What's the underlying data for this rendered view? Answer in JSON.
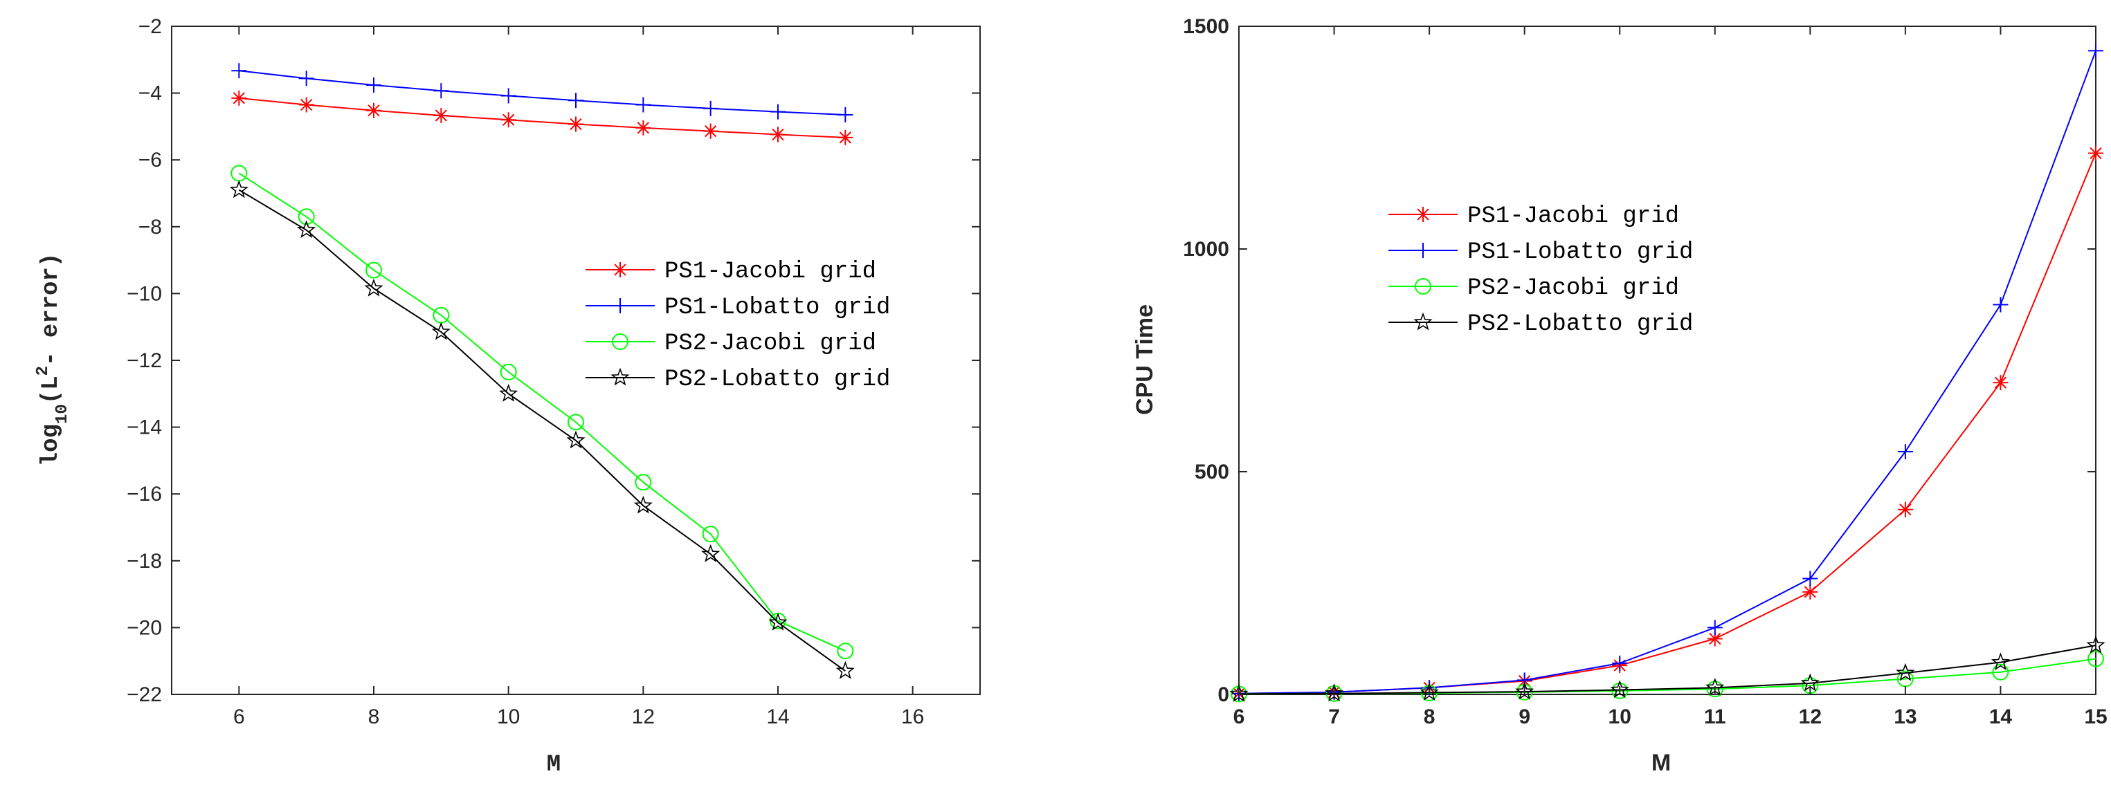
{
  "colors": {
    "ps1_jacobi": "#ff0000",
    "ps1_lobatto": "#0000ff",
    "ps2_jacobi": "#00ff00",
    "ps2_lobatto": "#000000"
  },
  "chart_data": [
    {
      "type": "line",
      "title": "",
      "xlabel": "M",
      "ylabel_prefix": "log",
      "ylabel_sub": "10",
      "ylabel_mid": "(L",
      "ylabel_sup": "2",
      "ylabel_suffix": "- error)",
      "xlim": [
        5,
        17
      ],
      "ylim": [
        -22,
        -2
      ],
      "xticks": [
        6,
        8,
        10,
        12,
        14,
        16
      ],
      "yticks": [
        -22,
        -20,
        -18,
        -16,
        -14,
        -12,
        -10,
        -8,
        -6,
        -4,
        -2
      ],
      "legend_position": "center-right",
      "x": [
        6,
        7,
        8,
        9,
        10,
        11,
        12,
        13,
        14,
        15
      ],
      "series": [
        {
          "name": "PS1-Jacobi grid",
          "color_key": "ps1_jacobi",
          "marker": "asterisk",
          "values": [
            -4.15,
            -4.35,
            -4.52,
            -4.67,
            -4.8,
            -4.93,
            -5.04,
            -5.14,
            -5.24,
            -5.33
          ]
        },
        {
          "name": "PS1-Lobatto grid",
          "color_key": "ps1_lobatto",
          "marker": "plus",
          "values": [
            -3.33,
            -3.56,
            -3.76,
            -3.93,
            -4.08,
            -4.22,
            -4.35,
            -4.46,
            -4.56,
            -4.65
          ]
        },
        {
          "name": "PS2-Jacobi grid",
          "color_key": "ps2_jacobi",
          "marker": "circle",
          "values": [
            -6.4,
            -7.7,
            -9.3,
            -10.65,
            -12.35,
            -13.85,
            -15.65,
            -17.2,
            -19.8,
            -20.7
          ]
        },
        {
          "name": "PS2-Lobatto grid",
          "color_key": "ps2_lobatto",
          "marker": "star",
          "values": [
            -6.9,
            -8.1,
            -9.85,
            -11.15,
            -13.0,
            -14.4,
            -16.35,
            -17.8,
            -19.85,
            -21.3
          ]
        }
      ]
    },
    {
      "type": "line",
      "title": "",
      "xlabel": "M",
      "ylabel": "CPU Time",
      "xlim": [
        6,
        15
      ],
      "ylim": [
        0,
        1500
      ],
      "xticks": [
        6,
        7,
        8,
        9,
        10,
        11,
        12,
        13,
        14,
        15
      ],
      "yticks": [
        0,
        500,
        1000,
        1500
      ],
      "legend_position": "upper-center",
      "x": [
        6,
        7,
        8,
        9,
        10,
        11,
        12,
        13,
        14,
        15
      ],
      "series": [
        {
          "name": "PS1-Jacobi grid",
          "color_key": "ps1_jacobi",
          "marker": "asterisk",
          "values": [
            2,
            5,
            15,
            30,
            65,
            125,
            230,
            415,
            700,
            1215
          ]
        },
        {
          "name": "PS1-Lobatto grid",
          "color_key": "ps1_lobatto",
          "marker": "plus",
          "values": [
            2,
            5,
            15,
            32,
            70,
            150,
            260,
            545,
            875,
            1445
          ]
        },
        {
          "name": "PS2-Jacobi grid",
          "color_key": "ps2_jacobi",
          "marker": "circle",
          "values": [
            1,
            2,
            3,
            5,
            8,
            12,
            20,
            35,
            50,
            80
          ]
        },
        {
          "name": "PS2-Lobatto grid",
          "color_key": "ps2_lobatto",
          "marker": "star",
          "values": [
            1,
            2,
            4,
            6,
            10,
            15,
            25,
            48,
            72,
            110
          ]
        }
      ]
    }
  ]
}
